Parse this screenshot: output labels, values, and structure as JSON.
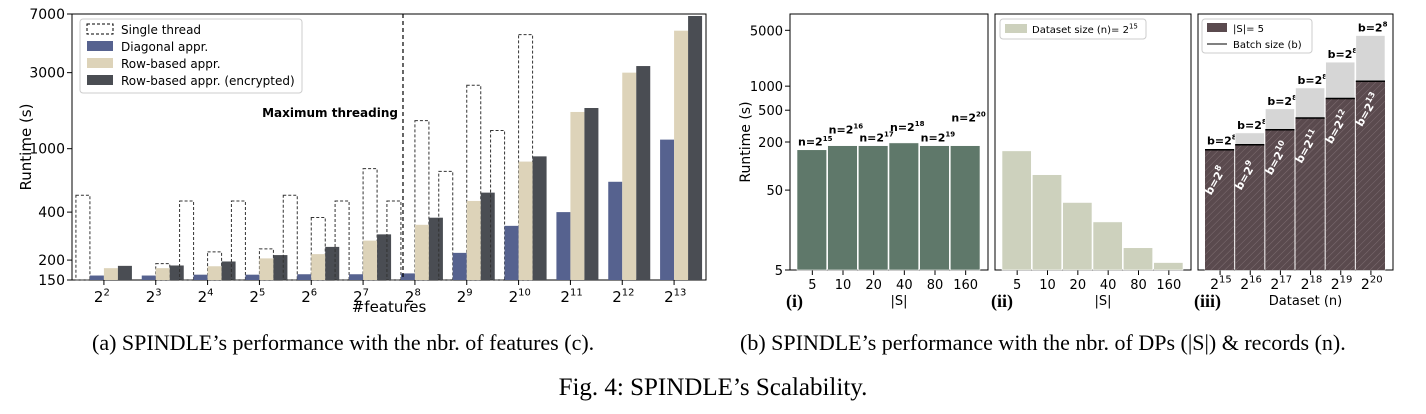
{
  "colors": {
    "diagonal": "#56628f",
    "row_based": "#ddd3b9",
    "row_encrypted": "#4a4d53",
    "single_thread_edge": "#333333",
    "green_dark": "#5f786a",
    "green_light": "#cdd1bd",
    "iii_bar": "#5a4a4e",
    "iii_top": "#d6d6d6"
  },
  "captions": {
    "a_name": "SPINDLE",
    "a_rest": "’s performance with the nbr. of features (c).",
    "b_name": "SPINDLE",
    "b_rest": "’s performance with the nbr. of DPs (|S|) & records (n).",
    "fig_prefix": "Fig. 4: ",
    "fig_name": "SPINDLE",
    "fig_rest": "’s Scalability."
  },
  "chart_data": [
    {
      "id": "a",
      "type": "bar",
      "ylabel": "Runtime (s)",
      "xlabel": "#features",
      "yscale": "log",
      "ylim": [
        150,
        7000
      ],
      "yticks": [
        150,
        200,
        400,
        1000,
        3000,
        7000
      ],
      "ytick_labels": [
        "150",
        "200",
        "400",
        "1000",
        "3000",
        "7000"
      ],
      "categories": [
        "2^2",
        "2^3",
        "2^4",
        "2^5",
        "2^6",
        "2^7",
        "2^8",
        "2^9",
        "2^10",
        "2^11",
        "2^12",
        "2^13"
      ],
      "category_bases": [
        "2",
        "2",
        "2",
        "2",
        "2",
        "2",
        "2",
        "2",
        "2",
        "2",
        "2",
        "2"
      ],
      "category_exps": [
        "2",
        "3",
        "4",
        "5",
        "6",
        "7",
        "8",
        "9",
        "10",
        "11",
        "12",
        "13"
      ],
      "annotation": "Maximum threading",
      "legend_position": "top-left",
      "series": [
        {
          "name": "Single thread",
          "style": "dashed-outline",
          "values": [
            510,
            null,
            470,
            470,
            510,
            470,
            470,
            720,
            1300,
            null,
            null,
            null
          ],
          "paired_values": [
            null,
            190,
            225,
            235,
            370,
            750,
            1500,
            2500,
            5200,
            null,
            null,
            null
          ]
        },
        {
          "name": "Diagonal appr.",
          "values": [
            160,
            160,
            162,
            162,
            163,
            163,
            165,
            222,
            328,
            400,
            620,
            1140
          ]
        },
        {
          "name": "Row-based appr.",
          "values": [
            178,
            178,
            183,
            205,
            218,
            265,
            333,
            470,
            830,
            1700,
            3000,
            5500
          ]
        },
        {
          "name": "Row-based appr. (encrypted)",
          "values": [
            184,
            185,
            196,
            215,
            242,
            290,
            369,
            530,
            895,
            1800,
            3300,
            6800
          ]
        }
      ]
    },
    {
      "id": "i",
      "panel_label": "(i)",
      "type": "bar",
      "ylabel": "Runtime (s)",
      "xlabel": "|S|",
      "yscale": "log",
      "ylim": [
        5,
        8000
      ],
      "yticks": [
        5,
        50,
        200,
        500,
        1000,
        5000
      ],
      "ytick_labels": [
        "5",
        "50",
        "200",
        "500",
        "1000",
        "5000"
      ],
      "categories": [
        "5",
        "10",
        "20",
        "40",
        "80",
        "160"
      ],
      "values": [
        160,
        180,
        180,
        195,
        180,
        180
      ],
      "bar_label_prefix": "n=2",
      "bar_label_exps": [
        "15",
        "16",
        "17",
        "18",
        "19",
        "20"
      ]
    },
    {
      "id": "ii",
      "panel_label": "(ii)",
      "type": "bar",
      "xlabel": "|S|",
      "yscale": "log",
      "ylim": [
        5,
        8000
      ],
      "categories": [
        "5",
        "10",
        "20",
        "40",
        "80",
        "160"
      ],
      "values": [
        155,
        78,
        35,
        20,
        9.5,
        6.2
      ],
      "legend_position": "top-left",
      "legend_text": "Dataset size (n)= 2",
      "legend_exp": "15"
    },
    {
      "id": "iii",
      "panel_label": "(iii)",
      "type": "bar",
      "xlabel": "Dataset (n)",
      "yscale": "log",
      "ylim": [
        5,
        8000
      ],
      "categories": [
        "2^15",
        "2^16",
        "2^17",
        "2^18",
        "2^19",
        "2^20"
      ],
      "category_exps": [
        "15",
        "16",
        "17",
        "18",
        "19",
        "20"
      ],
      "legend_position": "top-left",
      "series": [
        {
          "name": "|S|= 5",
          "values": [
            160,
            185,
            285,
            400,
            700,
            1150
          ],
          "label_prefix": "b=2",
          "label_exps": [
            "8",
            "9",
            "10",
            "11",
            "12",
            "13"
          ]
        },
        {
          "name": "Batch size (b)",
          "values": [
            165,
            260,
            520,
            950,
            2000,
            4300
          ],
          "label_prefix": "b=2",
          "label_exps": [
            "8",
            "8",
            "8",
            "8",
            "8",
            "8"
          ]
        }
      ]
    }
  ]
}
